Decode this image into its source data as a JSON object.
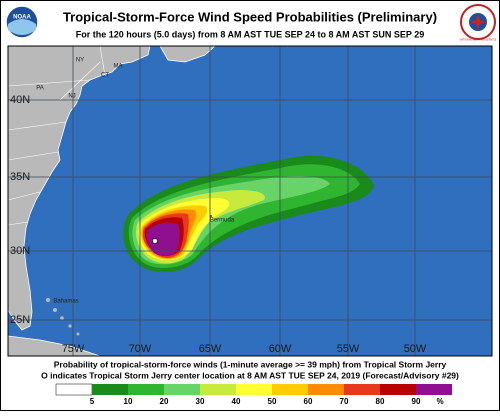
{
  "header": {
    "title": "Tropical-Storm-Force Wind Speed Probabilities (Preliminary)",
    "subtitle": "For the 120 hours (5.0 days) from 8 AM AST TUE SEP 24 to 8 AM AST SUN SEP 29",
    "left_logo": "NOAA",
    "right_logo": "NATIONAL WEATHER SERVICE"
  },
  "map": {
    "lat_labels": [
      "40N",
      "35N",
      "30N",
      "25N"
    ],
    "lon_labels": [
      "75W",
      "70W",
      "65W",
      "60W",
      "55W",
      "50W"
    ],
    "place_labels": [
      "NY",
      "MA",
      "CT",
      "PA",
      "NJ",
      "Bermuda",
      "Bahamas"
    ]
  },
  "footer": {
    "line1": "Probability of tropical-storm-force winds (1-minute average >= 39 mph) from Tropical Storm Jerry",
    "line2": "O indicates Tropical Storm Jerry center location at 8 AM AST TUE SEP 24, 2019 (Forecast/Advisory #29)"
  },
  "legend": {
    "labels": [
      "5",
      "10",
      "20",
      "30",
      "40",
      "50",
      "60",
      "70",
      "80",
      "90",
      "%"
    ]
  }
}
